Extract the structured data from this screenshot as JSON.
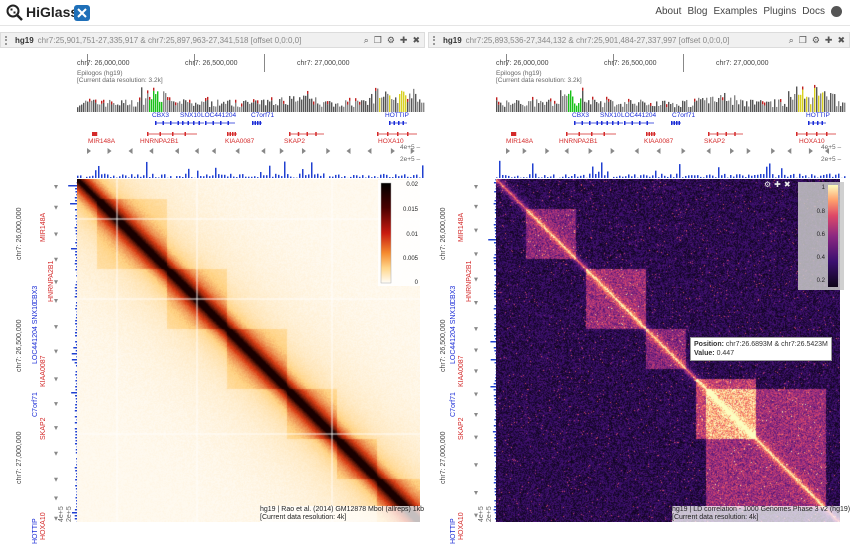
{
  "app": {
    "brand": "HiGlass",
    "nav": [
      "About",
      "Blog",
      "Examples",
      "Plugins",
      "Docs"
    ],
    "icons": {
      "logo": "magnifier-logo-icon",
      "partner": "x-logo-icon",
      "github": "github-icon"
    }
  },
  "views": [
    {
      "assembly": "hg19",
      "location": "chr7:25,901,751-27,335,917 & chr7:25,897,963-27,341,518 [offset 0,0:0,0]",
      "ruler_labels": [
        "chr7: 26,000,000",
        "chr7: 26,500,000",
        "chr7: 27,000,000"
      ],
      "epilogos_title": "Epilogos (hg19)",
      "epilogos_resolution": "[Current data resolution: 3.2k]",
      "genes_top": [
        "CBX3",
        "SNX10",
        "LOC441204",
        "C7orf71",
        "HOTTIP"
      ],
      "genes_bottom": [
        "MIR148A",
        "HNRNPA2B1",
        "KIAA0087",
        "SKAP2",
        "HOXA10"
      ],
      "bar_labels": [
        "4e+5 –",
        "2e+5 –"
      ],
      "colorbar_ticks": [
        "0.02",
        "0.015",
        "0.01",
        "0.005",
        "0"
      ],
      "caption_line1": "hg19 | Rao et al. (2014) GM12878 MboI (allreps) 1kb",
      "caption_line2": "[Current data resolution: 4k]",
      "vertical_ruler": [
        "chr7: 26,000,000",
        "chr7: 26,500,000",
        "chr7: 27,000,000"
      ],
      "vertical_genes_red": [
        "MIR148A",
        "HNRNPA2B1",
        "KIAA0087",
        "SKAP2",
        "HOXA10"
      ],
      "vertical_genes_blue": [
        "CBX3",
        "LOC441204 SNX10",
        "C7orf71",
        "HOTTIP"
      ],
      "vertical_bar_labels": [
        "4e+5",
        "2e+5"
      ]
    },
    {
      "assembly": "hg19",
      "location": "chr7:25,893,536-27,344,132 & chr7:25,901,484-27,337,997 [offset 0,0:0,0]",
      "ruler_labels": [
        "chr7: 26,000,000",
        "chr7: 26,500,000",
        "chr7: 27,000,000"
      ],
      "epilogos_title": "Epilogos (hg19)",
      "epilogos_resolution": "[Current data resolution: 3.2k]",
      "genes_top": [
        "CBX3",
        "SNX10",
        "LOC441204",
        "C7orf71",
        "HOTTIP"
      ],
      "genes_bottom": [
        "MIR148A",
        "HNRNPA2B1",
        "KIAA0087",
        "SKAP2",
        "HOXA10"
      ],
      "bar_labels": [
        "4e+5 –",
        "2e+5 –"
      ],
      "colorbar_ticks": [
        "1",
        "0.8",
        "0.6",
        "0.4",
        "0.2"
      ],
      "caption_line1": "hg19 | LD correlation - 1000 Genomes Phase 3 v2 (hg19)",
      "caption_line2": "[Current data resolution: 4k]",
      "tooltip_position_label": "Position:",
      "tooltip_position_value": "chr7:26.6893M & chr7:26.5423M",
      "tooltip_value_label": "Value:",
      "tooltip_value": "0.447",
      "vertical_ruler": [
        "chr7: 26,000,000",
        "chr7: 26,500,000",
        "chr7: 27,000,000"
      ],
      "vertical_genes_red": [
        "MIR148A",
        "HNRNPA2B1",
        "KIAA0087",
        "SKAP2",
        "HOXA10"
      ],
      "vertical_genes_blue": [
        "CBX3",
        "LOC441204 SNX10",
        "C7orf71",
        "HOTTIP"
      ],
      "vertical_bar_labels": [
        "4e+5",
        "2e+5"
      ]
    }
  ],
  "colors": {
    "hic_low": "#fff8ef",
    "hic_high": "#1a0000",
    "ld_low": "#0d0418",
    "ld_high": "#fcfdbf",
    "gene_blue": "#1a2bd6",
    "gene_red": "#d42a2a"
  }
}
